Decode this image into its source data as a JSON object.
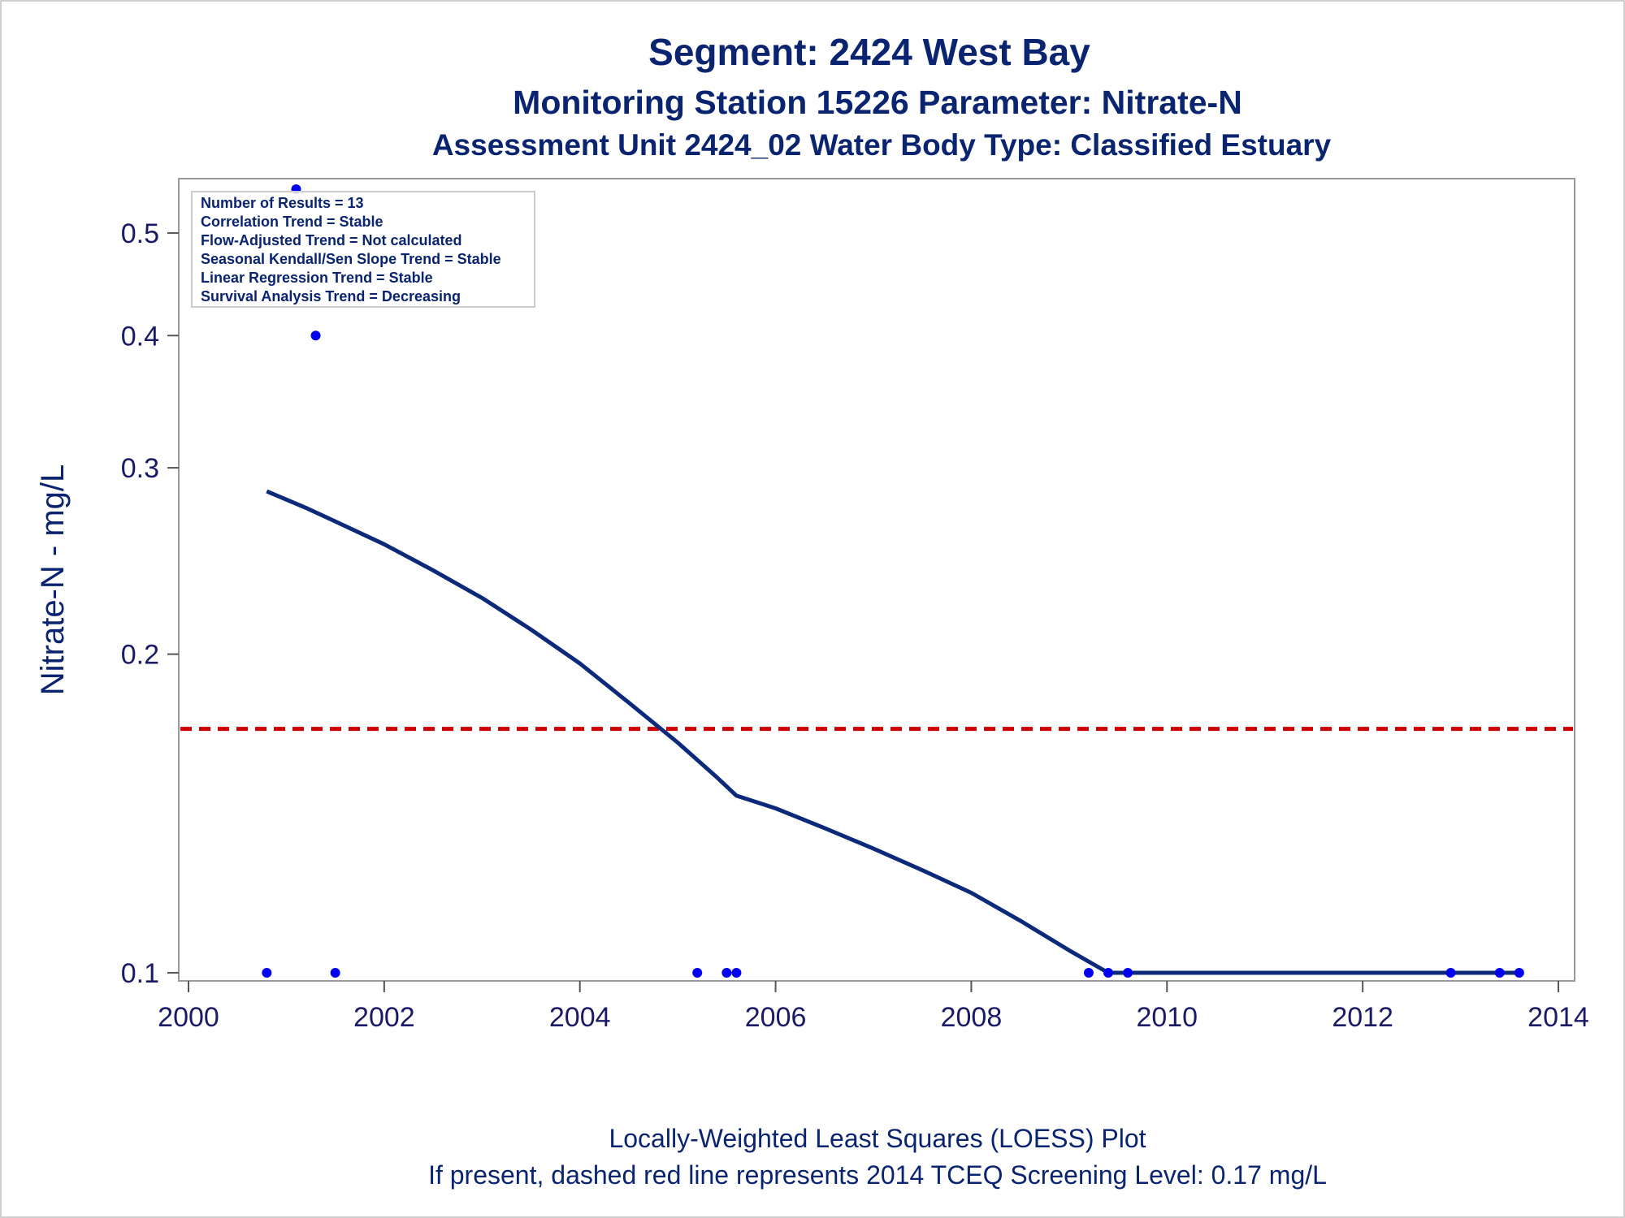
{
  "titles": {
    "line1": "Segment: 2424  West Bay",
    "line2": "Monitoring Station 15226 Parameter: Nitrate-N",
    "line3": "Assessment Unit 2424_02   Water Body Type: Classified Estuary"
  },
  "footnotes": {
    "line1": "Locally-Weighted Least Squares (LOESS) Plot",
    "line2": "If present, dashed red line represents 2014 TCEQ Screening Level: 0.17 mg/L"
  },
  "stats_box": [
    "Number of Results = 13",
    "Correlation Trend = Stable",
    "Flow-Adjusted Trend = Not calculated",
    "Seasonal Kendall/Sen Slope Trend = Stable",
    "Linear Regression Trend = Stable",
    "Survival Analysis Trend = Decreasing"
  ],
  "colors": {
    "text": "#0a2470",
    "points": "#0000ee",
    "loess": "#0d2a7a",
    "screening": "#cc0000",
    "frame": "#999999"
  },
  "chart_data": {
    "type": "scatter",
    "ylabel": "Nitrate-N - mg/L",
    "xlabel": "",
    "xlim": [
      2000,
      2014
    ],
    "ylim": [
      0.1,
      0.55
    ],
    "y_scale": "log",
    "x_ticks": [
      2000,
      2002,
      2004,
      2006,
      2008,
      2010,
      2012,
      2014
    ],
    "y_ticks": [
      0.1,
      0.2,
      0.3,
      0.4,
      0.5
    ],
    "points": [
      {
        "x": 2000.8,
        "y": 0.1
      },
      {
        "x": 2001.1,
        "y": 0.55
      },
      {
        "x": 2001.3,
        "y": 0.4
      },
      {
        "x": 2001.5,
        "y": 0.1
      },
      {
        "x": 2005.2,
        "y": 0.1
      },
      {
        "x": 2005.5,
        "y": 0.1
      },
      {
        "x": 2005.6,
        "y": 0.1
      },
      {
        "x": 2009.2,
        "y": 0.1
      },
      {
        "x": 2009.4,
        "y": 0.1
      },
      {
        "x": 2009.6,
        "y": 0.1
      },
      {
        "x": 2012.9,
        "y": 0.1
      },
      {
        "x": 2013.4,
        "y": 0.1
      },
      {
        "x": 2013.6,
        "y": 0.1
      }
    ],
    "loess": [
      {
        "x": 2000.8,
        "y": 0.285
      },
      {
        "x": 2001.2,
        "y": 0.275
      },
      {
        "x": 2001.5,
        "y": 0.267
      },
      {
        "x": 2002.0,
        "y": 0.254
      },
      {
        "x": 2002.5,
        "y": 0.24
      },
      {
        "x": 2003.0,
        "y": 0.226
      },
      {
        "x": 2003.5,
        "y": 0.211
      },
      {
        "x": 2004.0,
        "y": 0.196
      },
      {
        "x": 2004.5,
        "y": 0.18
      },
      {
        "x": 2005.0,
        "y": 0.165
      },
      {
        "x": 2005.4,
        "y": 0.153
      },
      {
        "x": 2005.6,
        "y": 0.147
      },
      {
        "x": 2006.0,
        "y": 0.143
      },
      {
        "x": 2006.5,
        "y": 0.137
      },
      {
        "x": 2007.0,
        "y": 0.131
      },
      {
        "x": 2007.5,
        "y": 0.125
      },
      {
        "x": 2008.0,
        "y": 0.119
      },
      {
        "x": 2008.5,
        "y": 0.112
      },
      {
        "x": 2009.0,
        "y": 0.105
      },
      {
        "x": 2009.4,
        "y": 0.1
      },
      {
        "x": 2013.6,
        "y": 0.1
      }
    ],
    "screening_level": 0.17
  }
}
